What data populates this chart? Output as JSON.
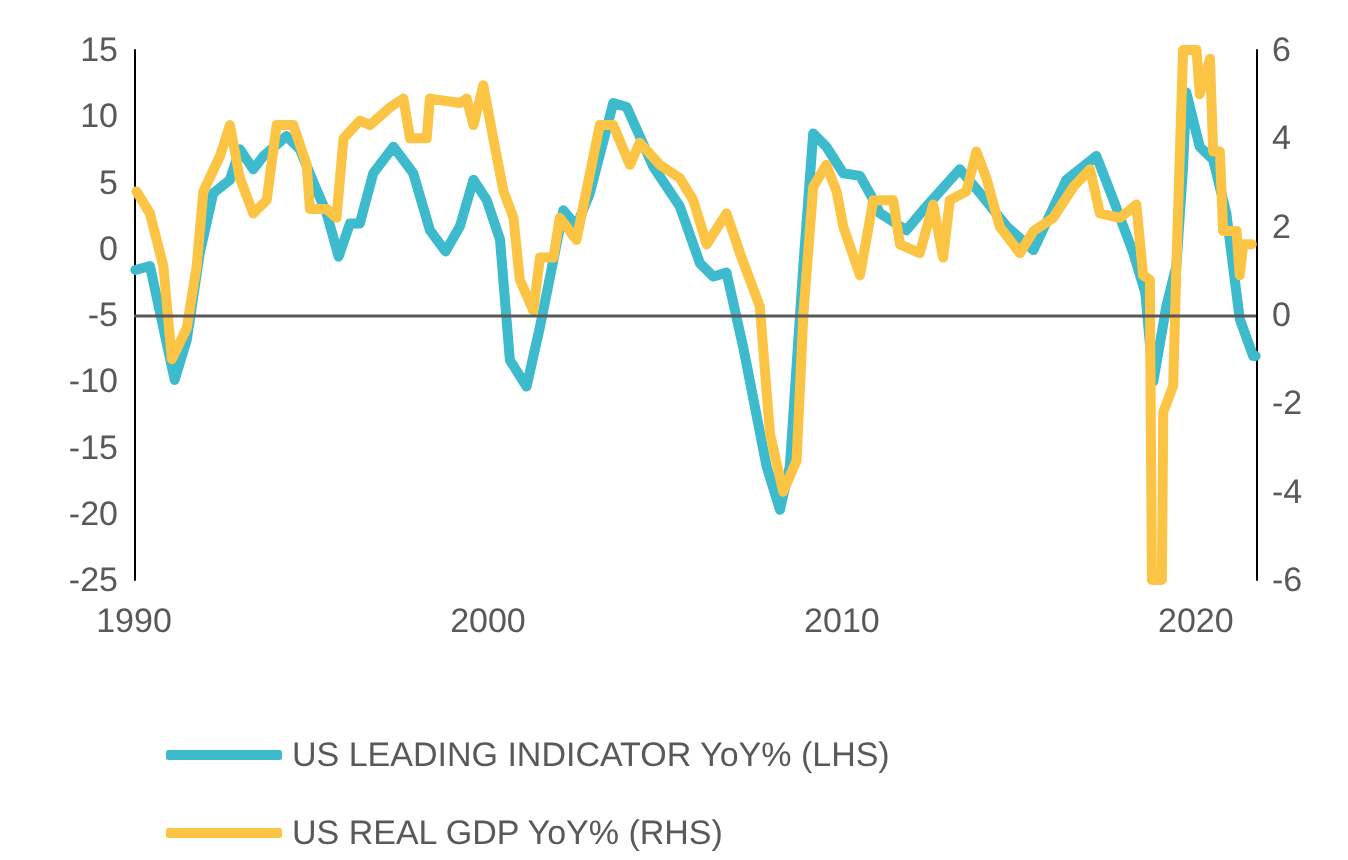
{
  "chart_data": {
    "type": "line",
    "xlim": [
      1990,
      2021.7
    ],
    "xticks": [
      1990,
      2000,
      2010,
      2020
    ],
    "ylim": [
      -25,
      15
    ],
    "yticks": [
      -25,
      -20,
      -15,
      -10,
      -5,
      0,
      5,
      10,
      15
    ],
    "y2lim": [
      -6,
      6
    ],
    "y2ticks": [
      -6,
      -4,
      -2,
      0,
      2,
      4,
      6
    ],
    "grid": false,
    "legend": "bottom",
    "marker": "none",
    "line_style": "solid",
    "ref_lines": [
      {
        "axis": "y2",
        "value": 0,
        "color": "#595959"
      }
    ],
    "series": [
      {
        "name": "US LEADING INDICATOR YoY% (LHS)",
        "color": "#3dbacb",
        "x": [
          1990.04,
          1990.45,
          1991.15,
          1991.49,
          1991.86,
          1992.24,
          1992.71,
          1992.99,
          1993.37,
          1993.66,
          1994.31,
          1994.69,
          1995.07,
          1995.44,
          1995.78,
          1996.1,
          1996.38,
          1996.76,
          1997.33,
          1997.89,
          1998.36,
          1998.8,
          1999.21,
          1999.59,
          1999.96,
          2000.34,
          2000.62,
          2001.09,
          2001.47,
          2002.13,
          2002.5,
          2002.88,
          2003.54,
          2003.92,
          2004.67,
          2005.42,
          2005.99,
          2006.37,
          2006.74,
          2007.21,
          2007.87,
          2008.25,
          2008.53,
          2008.91,
          2009.19,
          2009.56,
          2010.04,
          2010.51,
          2010.89,
          2011.07,
          2011.82,
          2012.39,
          2013.33,
          2013.9,
          2014.65,
          2015.41,
          2016.34,
          2017.19,
          2017.67,
          2018.23,
          2018.57,
          2018.8,
          2019.17,
          2019.45,
          2019.64,
          2019.73,
          2020.11,
          2020.49,
          2020.86,
          2021.24,
          2021.62,
          2021.69
        ],
        "values": [
          -1.6,
          -1.3,
          -9.9,
          -6.9,
          -0.3,
          4.2,
          5.2,
          7.5,
          6,
          7,
          8.5,
          7.5,
          5,
          2.7,
          -0.6,
          1.9,
          1.9,
          5.7,
          7.7,
          5.7,
          1.4,
          -0.2,
          1.7,
          5.2,
          3.7,
          0.7,
          -8.4,
          -10.4,
          -5.9,
          2.9,
          1.7,
          4.2,
          11,
          10.7,
          6.2,
          3.2,
          -1.1,
          -2.1,
          -1.8,
          -7.4,
          -16.4,
          -19.7,
          -16.4,
          -1.3,
          8.7,
          7.7,
          5.7,
          5.5,
          3.7,
          2.7,
          1.4,
          3.2,
          6,
          4.2,
          1.7,
          -0.1,
          5.2,
          7,
          3.7,
          -0.3,
          -3.3,
          -10,
          -4.3,
          -1.3,
          6.2,
          11.8,
          7.7,
          6.7,
          2.7,
          -5.3,
          -8.1,
          -8.1
        ]
      },
      {
        "name": "US REAL GDP YoY% (RHS)",
        "color": "#fcc444",
        "axis": "y2",
        "x": [
          1990.07,
          1990.45,
          1990.83,
          1991.07,
          1991.49,
          1991.77,
          1991.96,
          1992.43,
          1992.71,
          1992.99,
          1993.37,
          1993.75,
          1994.03,
          1994.5,
          1994.88,
          1994.97,
          1995.44,
          1995.72,
          1995.92,
          1996.38,
          1996.67,
          1997.23,
          1997.61,
          1997.8,
          1998.27,
          1998.36,
          1999.21,
          1999.4,
          1999.59,
          1999.87,
          2000.15,
          2000.44,
          2000.72,
          2000.9,
          2001.28,
          2001.47,
          2001.85,
          2002.03,
          2002.5,
          2002.88,
          2003.16,
          2003.54,
          2004.01,
          2004.29,
          2004.86,
          2005.42,
          2005.8,
          2006.18,
          2006.74,
          2007.12,
          2007.68,
          2007.97,
          2008.34,
          2008.72,
          2008.91,
          2009.19,
          2009.56,
          2009.85,
          2010.04,
          2010.51,
          2010.89,
          2011.45,
          2011.64,
          2012.2,
          2012.58,
          2012.86,
          2013.05,
          2013.52,
          2013.8,
          2014.08,
          2014.46,
          2015.03,
          2015.41,
          2015.97,
          2016.54,
          2017.01,
          2017.29,
          2017.85,
          2018.32,
          2018.51,
          2018.7,
          2018.76,
          2019.04,
          2019.08,
          2019.36,
          2019.45,
          2019.64,
          2020.02,
          2020.11,
          2020.4,
          2020.49,
          2020.68,
          2020.77,
          2021.15,
          2021.24,
          2021.34,
          2021.58
        ],
        "values": [
          2.8,
          2.3,
          1.1,
          -1.0,
          -0.3,
          1.1,
          2.8,
          3.6,
          4.3,
          3.1,
          2.3,
          2.6,
          4.3,
          4.3,
          3.4,
          2.4,
          2.4,
          2.2,
          4.0,
          4.4,
          4.3,
          4.7,
          4.9,
          4.0,
          4.0,
          4.9,
          4.8,
          4.9,
          4.3,
          5.2,
          4.0,
          2.8,
          2.2,
          0.8,
          0.1,
          1.3,
          1.3,
          2.2,
          1.7,
          3.2,
          4.3,
          4.3,
          3.4,
          3.9,
          3.4,
          3.1,
          2.6,
          1.6,
          2.3,
          1.4,
          0.2,
          -2.7,
          -4.0,
          -3.3,
          0.0,
          2.9,
          3.4,
          2.8,
          2.0,
          0.9,
          2.6,
          2.6,
          1.6,
          1.4,
          2.5,
          1.3,
          2.6,
          2.8,
          3.7,
          3.1,
          2.0,
          1.4,
          1.9,
          2.2,
          2.9,
          3.3,
          2.3,
          2.2,
          2.5,
          0.9,
          0.8,
          -6,
          -6,
          -2.2,
          -1.6,
          1.1,
          6.0,
          6.0,
          5.0,
          5.8,
          3.7,
          3.7,
          1.9,
          1.9,
          0.9,
          1.6,
          1.6
        ]
      }
    ]
  }
}
